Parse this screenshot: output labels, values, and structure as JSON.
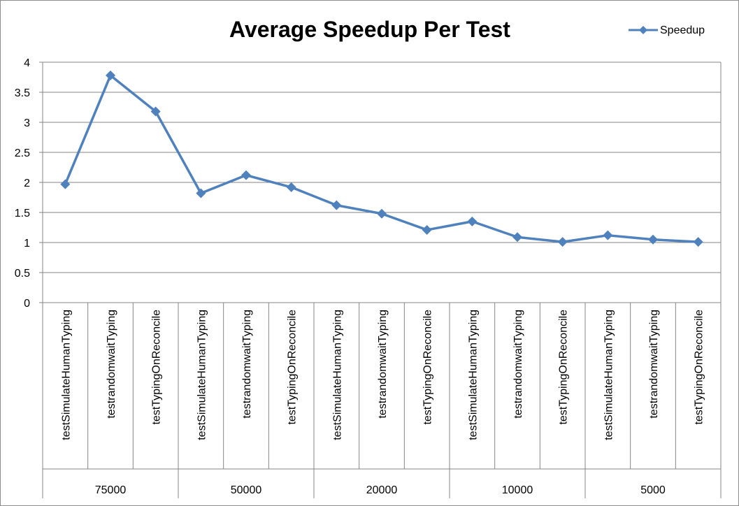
{
  "chart_data": {
    "type": "line",
    "title": "Average Speedup Per Test",
    "xlabel": "",
    "ylabel": "",
    "ylim": [
      0,
      4
    ],
    "yticks": [
      0,
      0.5,
      1,
      1.5,
      2,
      2.5,
      3,
      3.5,
      4
    ],
    "ytick_labels": [
      "0",
      "0.5",
      "1",
      "1.5",
      "2",
      "2.5",
      "3",
      "3.5",
      "4"
    ],
    "grid": true,
    "legend_position": "top-right",
    "categories": [
      "testSimulateHumanTyping",
      "testrandomwaitTyping",
      "testTypingOnReconcile",
      "testSimulateHumanTyping",
      "testrandomwaitTyping",
      "testTypingOnReconcile",
      "testSimulateHumanTyping",
      "testrandomwaitTyping",
      "testTypingOnReconcile",
      "testSimulateHumanTyping",
      "testrandomwaitTyping",
      "testTypingOnReconcile",
      "testSimulateHumanTyping",
      "testrandomwaitTyping",
      "testTypingOnReconcile"
    ],
    "groups": [
      "75000",
      "50000",
      "20000",
      "10000",
      "5000"
    ],
    "series": [
      {
        "name": "Speedup",
        "color": "#4f81bd",
        "marker": "diamond",
        "values": [
          1.97,
          3.78,
          3.18,
          1.82,
          2.12,
          1.92,
          1.62,
          1.48,
          1.21,
          1.35,
          1.09,
          1.01,
          1.12,
          1.05,
          1.01
        ]
      }
    ]
  }
}
